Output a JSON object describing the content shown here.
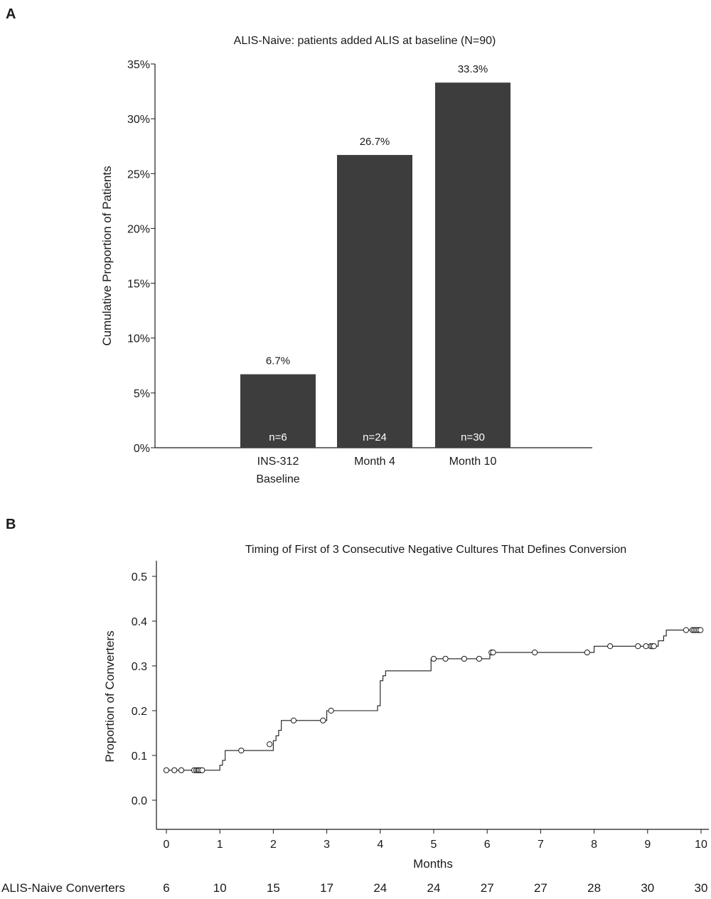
{
  "panel_a_letter": "A",
  "panel_b_letter": "B",
  "chart_data": [
    {
      "type": "bar",
      "title": "ALIS-Naive: patients added ALIS at baseline (N=90)",
      "ylabel": "Cumulative Proportion of Patients",
      "xlabel": "",
      "ylim": [
        0,
        35
      ],
      "yticks": [
        "0%",
        "5%",
        "10%",
        "15%",
        "20%",
        "25%",
        "30%",
        "35%"
      ],
      "categories": [
        [
          "INS-312",
          "Baseline"
        ],
        [
          "Month 4"
        ],
        [
          "Month 10"
        ]
      ],
      "values": [
        6.7,
        26.7,
        33.3
      ],
      "value_labels": [
        "6.7%",
        "26.7%",
        "33.3%"
      ],
      "n_labels": [
        "n=6",
        "n=24",
        "n=30"
      ],
      "bar_color": "#3d3d3d"
    },
    {
      "type": "line",
      "step": true,
      "title": "Timing of First of 3 Consecutive Negative Cultures That Defines Conversion",
      "xlabel": "Months",
      "ylabel": "Proportion of Converters",
      "xlim": [
        0,
        10
      ],
      "ylim": [
        -0.05,
        0.5
      ],
      "xticks": [
        "0",
        "1",
        "2",
        "3",
        "4",
        "5",
        "6",
        "7",
        "8",
        "9",
        "10"
      ],
      "yticks": [
        "0.0",
        "0.1",
        "0.2",
        "0.3",
        "0.4",
        "0.5"
      ],
      "step_points": [
        [
          0,
          0.067
        ],
        [
          0.95,
          0.067
        ],
        [
          1.0,
          0.078
        ],
        [
          1.05,
          0.089
        ],
        [
          1.1,
          0.111
        ],
        [
          1.95,
          0.111
        ],
        [
          2.0,
          0.133
        ],
        [
          2.05,
          0.144
        ],
        [
          2.1,
          0.156
        ],
        [
          2.15,
          0.178
        ],
        [
          2.95,
          0.178
        ],
        [
          3.0,
          0.2
        ],
        [
          3.9,
          0.2
        ],
        [
          3.95,
          0.211
        ],
        [
          4.0,
          0.267
        ],
        [
          4.05,
          0.278
        ],
        [
          4.1,
          0.289
        ],
        [
          4.9,
          0.289
        ],
        [
          4.95,
          0.316
        ],
        [
          6.0,
          0.316
        ],
        [
          6.05,
          0.33
        ],
        [
          7.9,
          0.33
        ],
        [
          8.0,
          0.344
        ],
        [
          9.15,
          0.344
        ],
        [
          9.2,
          0.356
        ],
        [
          9.3,
          0.367
        ],
        [
          9.35,
          0.38
        ],
        [
          10.0,
          0.38
        ]
      ],
      "censored": [
        [
          0.0,
          0.067
        ],
        [
          0.15,
          0.067
        ],
        [
          0.28,
          0.067
        ],
        [
          0.52,
          0.067
        ],
        [
          0.56,
          0.067
        ],
        [
          0.59,
          0.067
        ],
        [
          0.61,
          0.067
        ],
        [
          0.64,
          0.067
        ],
        [
          0.67,
          0.067
        ],
        [
          1.4,
          0.111
        ],
        [
          1.93,
          0.125
        ],
        [
          2.38,
          0.178
        ],
        [
          2.93,
          0.178
        ],
        [
          3.08,
          0.2
        ],
        [
          5.0,
          0.316
        ],
        [
          5.22,
          0.316
        ],
        [
          5.57,
          0.316
        ],
        [
          5.85,
          0.316
        ],
        [
          6.08,
          0.33
        ],
        [
          6.11,
          0.33
        ],
        [
          6.89,
          0.33
        ],
        [
          7.87,
          0.33
        ],
        [
          8.3,
          0.344
        ],
        [
          8.82,
          0.344
        ],
        [
          8.97,
          0.344
        ],
        [
          9.06,
          0.344
        ],
        [
          9.09,
          0.344
        ],
        [
          9.12,
          0.344
        ],
        [
          9.72,
          0.38
        ],
        [
          9.84,
          0.38
        ],
        [
          9.87,
          0.38
        ],
        [
          9.9,
          0.38
        ],
        [
          9.93,
          0.38
        ],
        [
          9.96,
          0.38
        ],
        [
          9.99,
          0.38
        ]
      ],
      "risk_table": {
        "label": "ALIS-Naive Converters",
        "values": [
          "6",
          "10",
          "15",
          "17",
          "24",
          "24",
          "27",
          "27",
          "28",
          "30",
          "30"
        ]
      }
    }
  ]
}
